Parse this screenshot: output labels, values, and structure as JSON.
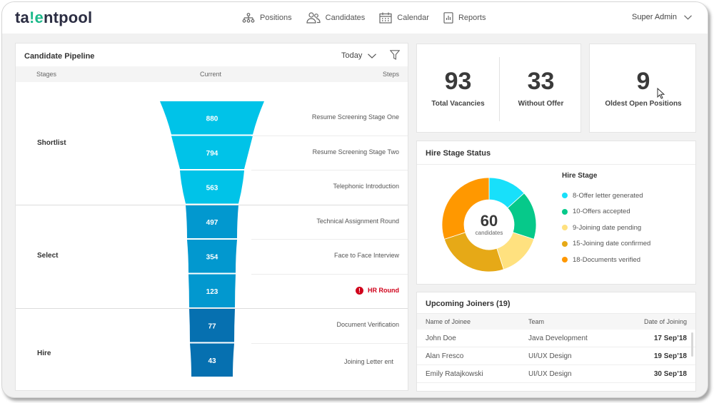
{
  "app": {
    "logo_prefix": "ta",
    "logo_accent": "!e",
    "logo_suffix": "ntpool",
    "brand_color": "#1cb98a"
  },
  "nav": {
    "items": [
      {
        "label": "Positions",
        "icon": "org-chart-icon"
      },
      {
        "label": "Candidates",
        "icon": "people-icon"
      },
      {
        "label": "Calendar",
        "icon": "calendar-icon"
      },
      {
        "label": "Reports",
        "icon": "report-icon"
      }
    ],
    "user": "Super Admin"
  },
  "pipeline": {
    "title": "Candidate Pipeline",
    "period": "Today",
    "columns": {
      "stages": "Stages",
      "current": "Current",
      "steps": "Steps"
    },
    "stages": [
      {
        "label": "Shortlist",
        "steps": [
          {
            "value": 880,
            "label": "Resume Screening Stage One"
          },
          {
            "value": 794,
            "label": "Resume Screening Stage Two"
          },
          {
            "value": 563,
            "label": "Telephonic Introduction"
          }
        ],
        "color": "#00c3e8"
      },
      {
        "label": "Select",
        "steps": [
          {
            "value": 497,
            "label": "Technical Assignment Round"
          },
          {
            "value": 354,
            "label": "Face to Face Interview"
          },
          {
            "value": 123,
            "label": "HR Round",
            "alert": true
          }
        ],
        "color": "#0298cf"
      },
      {
        "label": "Hire",
        "steps": [
          {
            "value": 77,
            "label": "Document Verification"
          },
          {
            "value": 43,
            "label": "Joining Letter ent"
          }
        ],
        "color": "#0670b0"
      }
    ]
  },
  "stats": {
    "total_vacancies": {
      "value": "93",
      "label": "Total Vacancies"
    },
    "without_offer": {
      "value": "33",
      "label": "Without Offer"
    },
    "oldest_open": {
      "value": "9",
      "label": "Oldest Open Positions"
    }
  },
  "hire_stage": {
    "title": "Hire Stage Status",
    "legend_title": "Hire Stage",
    "total": "60",
    "total_label": "candidates",
    "items": [
      {
        "label": "8-Offer letter generated",
        "value": 8,
        "color": "#18e0fa"
      },
      {
        "label": "10-Offers accepted",
        "value": 10,
        "color": "#06c98a"
      },
      {
        "label": "9-Joining date pending",
        "value": 9,
        "color": "#ffe17f"
      },
      {
        "label": "15-Joining date confirmed",
        "value": 15,
        "color": "#e6a917"
      },
      {
        "label": "18-Documents verified",
        "value": 18,
        "color": "#ff9800"
      }
    ]
  },
  "joiners": {
    "title": "Upcoming Joiners (19)",
    "columns": [
      "Name of Joinee",
      "Team",
      "Date of Joining"
    ],
    "rows": [
      [
        "John Doe",
        "Java Development",
        "17 Sep’18"
      ],
      [
        "Alan Fresco",
        "UI/UX Design",
        "19 Sep’18"
      ],
      [
        "Emily Ratajkowski",
        "UI/UX Design",
        "30 Sep’18"
      ]
    ]
  }
}
